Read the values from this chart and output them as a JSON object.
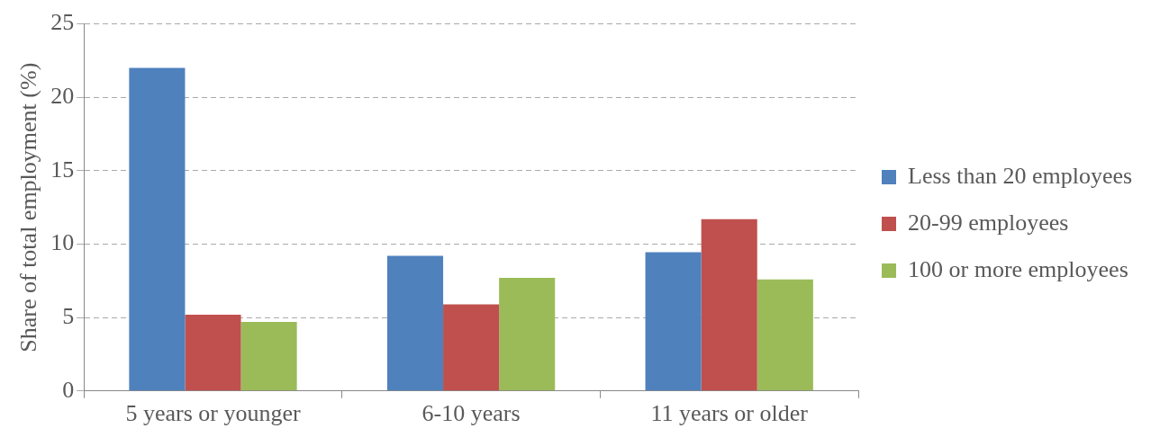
{
  "chart_data": {
    "type": "bar",
    "ylabel": "Share of total employment (%)",
    "categories": [
      "5 years or younger",
      "6-10 years",
      "11 years or older"
    ],
    "series": [
      {
        "name": "Less than 20 employees",
        "color": "#4f81bd",
        "values": [
          22.0,
          9.2,
          9.45
        ]
      },
      {
        "name": "20-99 employees",
        "color": "#c0504d",
        "values": [
          5.2,
          5.9,
          11.7
        ]
      },
      {
        "name": "100 or more employees",
        "color": "#9bbb59",
        "values": [
          4.7,
          7.7,
          7.6
        ]
      }
    ],
    "ylim": [
      0,
      25
    ],
    "yticks": [
      0,
      5,
      10,
      15,
      20,
      25
    ],
    "grid": "y",
    "legend": "right"
  }
}
